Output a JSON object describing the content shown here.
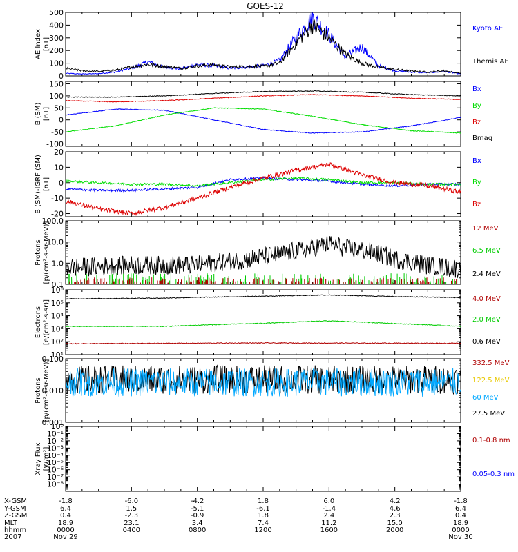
{
  "title": "GOES-12",
  "chart_data": [
    {
      "type": "line",
      "id": "ae",
      "ylabel": [
        "AE Index",
        "[nT]"
      ],
      "ylim": [
        0,
        500
      ],
      "ticks": [
        "0",
        "100",
        "200",
        "300",
        "400",
        "500"
      ],
      "legend": [
        {
          "name": "Kyoto AE",
          "color": "#0000ff"
        },
        {
          "name": "Themis AE",
          "color": "#000000"
        }
      ],
      "series": [
        {
          "name": "Kyoto AE",
          "color": "#0000ff",
          "x": [
            0,
            1,
            2,
            3,
            4,
            5,
            6,
            7,
            8,
            9,
            10,
            11,
            12,
            13,
            14,
            15,
            16,
            17,
            18,
            19,
            20,
            21,
            22,
            23,
            24
          ],
          "y": [
            20,
            15,
            18,
            30,
            60,
            110,
            70,
            55,
            90,
            80,
            60,
            70,
            80,
            120,
            300,
            460,
            320,
            150,
            230,
            80,
            40,
            30,
            25,
            35,
            15
          ]
        },
        {
          "name": "Themis AE",
          "color": "#000000",
          "x": [
            0,
            1,
            2,
            3,
            4,
            5,
            6,
            7,
            8,
            9,
            10,
            11,
            12,
            13,
            14,
            15,
            16,
            17,
            18,
            19,
            20,
            21,
            22,
            23,
            24
          ],
          "y": [
            60,
            40,
            35,
            45,
            70,
            90,
            75,
            60,
            80,
            85,
            70,
            75,
            75,
            100,
            260,
            400,
            300,
            170,
            100,
            70,
            50,
            40,
            30,
            40,
            20
          ]
        }
      ]
    },
    {
      "type": "line",
      "id": "bsm",
      "ylabel": [
        "B (SM)",
        "[nT]"
      ],
      "ylim": [
        -110,
        160
      ],
      "ticks": [
        "150",
        "100",
        "50",
        "0",
        "-50",
        "-100"
      ],
      "tickvals": [
        150,
        100,
        50,
        0,
        -50,
        -100
      ],
      "legend": [
        {
          "name": "Bx",
          "color": "#0000ff"
        },
        {
          "name": "By",
          "color": "#00dd00"
        },
        {
          "name": "Bz",
          "color": "#dd0000"
        },
        {
          "name": "Bmag",
          "color": "#000000"
        }
      ],
      "series": [
        {
          "name": "Bx",
          "color": "#0000ff",
          "x": [
            0,
            3,
            6,
            9,
            12,
            15,
            18,
            21,
            24
          ],
          "y": [
            20,
            45,
            40,
            0,
            -40,
            -55,
            -50,
            -25,
            10
          ]
        },
        {
          "name": "By",
          "color": "#00dd00",
          "x": [
            0,
            3,
            6,
            9,
            12,
            15,
            18,
            21,
            24
          ],
          "y": [
            -50,
            -25,
            20,
            50,
            45,
            15,
            -20,
            -45,
            -55
          ]
        },
        {
          "name": "Bz",
          "color": "#dd0000",
          "x": [
            0,
            3,
            6,
            9,
            12,
            15,
            18,
            21,
            24
          ],
          "y": [
            80,
            75,
            80,
            90,
            100,
            105,
            100,
            90,
            85
          ]
        },
        {
          "name": "Bmag",
          "color": "#000000",
          "x": [
            0,
            3,
            6,
            9,
            12,
            15,
            18,
            21,
            24
          ],
          "y": [
            95,
            95,
            100,
            110,
            118,
            120,
            115,
            105,
            100
          ]
        }
      ]
    },
    {
      "type": "line",
      "id": "bdiff",
      "ylabel": [
        "B (SM)-IGRF (SM)",
        "[nT]"
      ],
      "ylim": [
        -22,
        20
      ],
      "ticks": [
        "20",
        "10",
        "0",
        "-10",
        "-20"
      ],
      "tickvals": [
        20,
        10,
        0,
        -10,
        -20
      ],
      "legend": [
        {
          "name": "Bx",
          "color": "#0000ff"
        },
        {
          "name": "By",
          "color": "#00dd00"
        },
        {
          "name": "Bz",
          "color": "#dd0000"
        }
      ],
      "series": [
        {
          "name": "Bx",
          "color": "#0000ff",
          "x": [
            0,
            2,
            4,
            6,
            8,
            10,
            12,
            14,
            16,
            18,
            20,
            22,
            24
          ],
          "y": [
            -4,
            -5,
            -5,
            -4,
            -3,
            2,
            3,
            2,
            1,
            -1,
            -2,
            -1,
            -1
          ]
        },
        {
          "name": "By",
          "color": "#00dd00",
          "x": [
            0,
            2,
            4,
            6,
            8,
            10,
            12,
            14,
            16,
            18,
            20,
            22,
            24
          ],
          "y": [
            1,
            0,
            -1,
            -1,
            -2,
            0,
            2,
            3,
            2,
            0,
            0,
            -1,
            -1
          ]
        },
        {
          "name": "Bz",
          "color": "#dd0000",
          "x": [
            0,
            2,
            4,
            6,
            8,
            10,
            12,
            14,
            16,
            18,
            20,
            22,
            24
          ],
          "y": [
            -12,
            -17,
            -20,
            -16,
            -10,
            -3,
            3,
            8,
            12,
            5,
            0,
            -2,
            -6
          ]
        }
      ]
    },
    {
      "type": "line",
      "id": "protons",
      "yscale": "log",
      "ylabel": [
        "Protons",
        "[p/(cm²-s-sr-MeV)]"
      ],
      "ylim": [
        0.1,
        100
      ],
      "ticks": [
        "100.0",
        "10.0",
        "1.0",
        "0.1"
      ],
      "tickvals": [
        100,
        10,
        1,
        0.1
      ],
      "legend": [
        {
          "name": "12 MeV",
          "color": "#b00000"
        },
        {
          "name": "6.5 MeV",
          "color": "#00cc00"
        },
        {
          "name": "2.4 MeV",
          "color": "#000000"
        }
      ],
      "series": [
        {
          "name": "2.4 MeV",
          "color": "#000000",
          "x": [
            0,
            4,
            8,
            11,
            13,
            15,
            16,
            17,
            18,
            20,
            22,
            24
          ],
          "y": [
            0.6,
            0.8,
            0.8,
            1.5,
            2.5,
            5,
            8,
            5,
            4,
            1.5,
            0.8,
            0.5
          ]
        }
      ]
    },
    {
      "type": "line",
      "id": "electrons",
      "yscale": "log",
      "ylabel": [
        "Electrons",
        "[e/(cm²-s-sr)]"
      ],
      "ylim": [
        10,
        1000000
      ],
      "ticks": [
        "10⁶",
        "10⁵",
        "10⁴",
        "10³",
        "10²",
        "10¹"
      ],
      "tickvals": [
        1000000,
        100000,
        10000,
        1000,
        100,
        10
      ],
      "legend": [
        {
          "name": "4.0 MeV",
          "color": "#b00000"
        },
        {
          "name": "2.0 MeV",
          "color": "#00cc00"
        },
        {
          "name": "0.6 MeV",
          "color": "#000000"
        }
      ],
      "series": [
        {
          "name": "0.6 MeV",
          "color": "#000000",
          "x": [
            0,
            6,
            12,
            16,
            20,
            24
          ],
          "y": [
            200000,
            230000,
            320000,
            400000,
            300000,
            250000
          ]
        },
        {
          "name": "2.0 MeV",
          "color": "#00cc00",
          "x": [
            0,
            6,
            12,
            16,
            20,
            24
          ],
          "y": [
            1500,
            1500,
            2600,
            4000,
            2500,
            1500
          ]
        },
        {
          "name": "4.0 MeV",
          "color": "#b00000",
          "x": [
            0,
            12,
            24
          ],
          "y": [
            70,
            80,
            75
          ]
        }
      ]
    },
    {
      "type": "line",
      "id": "hprotons",
      "yscale": "log",
      "ylabel": [
        "Protons",
        "[p/(cm²-s-sr-MeV)]"
      ],
      "ylim": [
        0.001,
        0.1
      ],
      "ticks": [
        "0.100",
        "0.010",
        "0.001"
      ],
      "tickvals": [
        0.1,
        0.01,
        0.001
      ],
      "legend": [
        {
          "name": "332.5 MeV",
          "color": "#b00000"
        },
        {
          "name": "122.5 MeV",
          "color": "#e8c800"
        },
        {
          "name": "60 MeV",
          "color": "#00a8ff"
        },
        {
          "name": "27.5 MeV",
          "color": "#000000"
        }
      ],
      "series": [
        {
          "name": "27.5 MeV",
          "color": "#000000",
          "x": [
            0,
            24
          ],
          "y": [
            0.022,
            0.022
          ]
        },
        {
          "name": "60 MeV",
          "color": "#00a8ff",
          "x": [
            0,
            24
          ],
          "y": [
            0.018,
            0.018
          ]
        }
      ]
    },
    {
      "type": "line",
      "id": "xray",
      "yscale": "log",
      "ylabel": [
        "Xray Flux",
        "[W/m²]"
      ],
      "ylim": [
        1e-09,
        1
      ],
      "ticks": [
        "10⁰",
        "10⁻¹",
        "10⁻²",
        "10⁻³",
        "10⁻⁴",
        "10⁻⁵",
        "10⁻⁶",
        "10⁻⁷",
        "10⁻⁸"
      ],
      "tickvals": [
        1,
        0.1,
        0.01,
        0.001,
        0.0001,
        1e-05,
        1e-06,
        1e-07,
        1e-08
      ],
      "legend": [
        {
          "name": "0.1-0.8 nm",
          "color": "#b00000"
        },
        {
          "name": "0.05-0.3 nm",
          "color": "#0000ff"
        }
      ],
      "series": []
    }
  ],
  "x_axis": {
    "xlim": [
      0,
      24
    ],
    "tick_hours": [
      0,
      4,
      8,
      12,
      16,
      20,
      24
    ],
    "labels": [
      "X-GSM",
      "Y-GSM",
      "Z-GSM",
      "MLT",
      "hhmm",
      "2007"
    ],
    "rows": [
      [
        "-1.8",
        "-6.0",
        "-4.2",
        "1.8",
        "6.0",
        "4.2",
        "-1.8"
      ],
      [
        "6.4",
        "1.5",
        "-5.1",
        "-6.1",
        "-1.4",
        "4.6",
        "6.4"
      ],
      [
        "0.4",
        "-2.3",
        "-0.9",
        "1.8",
        "2.4",
        "2.3",
        "0.4"
      ],
      [
        "18.9",
        "23.1",
        "3.4",
        "7.4",
        "11.2",
        "15.0",
        "18.9"
      ],
      [
        "0000",
        "0400",
        "0800",
        "1200",
        "1600",
        "2000",
        "0000"
      ],
      [
        "Nov 29",
        "",
        "",
        "",
        "",
        "",
        "Nov 30"
      ]
    ]
  }
}
